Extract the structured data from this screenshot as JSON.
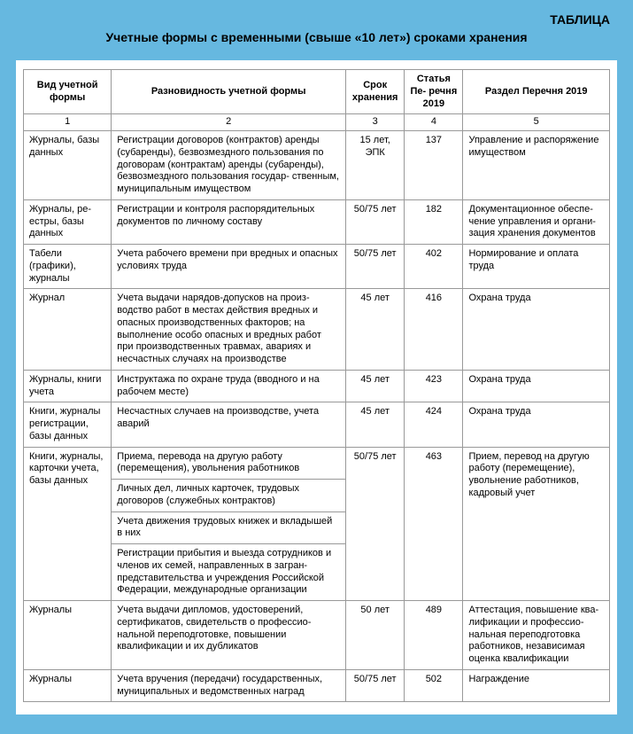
{
  "label": "ТАБЛИЦА",
  "title": "Учетные формы с временными (свыше «10 лет») сроками хранения",
  "table": {
    "columns": [
      "Вид учетной формы",
      "Разновидность учетной формы",
      "Срок хранения",
      "Статья Пе- речня 2019",
      "Раздел Перечня 2019"
    ],
    "col_numbers": [
      "1",
      "2",
      "3",
      "4",
      "5"
    ],
    "col_widths_pct": [
      15,
      40,
      10,
      10,
      25
    ],
    "border_color": "#999999",
    "background_color": "#ffffff",
    "outer_background": "#66b8e0",
    "font_family": "Arial",
    "header_fontsize": 11,
    "cell_fontsize": 11
  },
  "rows": [
    {
      "c1": "Журналы, базы данных",
      "c2": [
        "Регистрации договоров (контрактов) аренды (субаренды), безвозмездного пользования по договорам (контрактам) аренды (субаренды), безвозмездного пользования государ- ственным, муниципальным имуществом"
      ],
      "c3": "15 лет, ЭПК",
      "c4": "137",
      "c5": "Управление и распоряжение имуществом"
    },
    {
      "c1": "Журналы, ре- естры, базы данных",
      "c2": [
        "Регистрации и контроля распорядительных документов по личному составу"
      ],
      "c3": "50/75 лет",
      "c4": "182",
      "c5": "Документационное обеспе- чение управления и органи- зация хранения документов"
    },
    {
      "c1": "Табели (графики), журналы",
      "c2": [
        "Учета рабочего времени при вредных и опасных условиях труда"
      ],
      "c3": "50/75 лет",
      "c4": "402",
      "c5": "Нормирование и оплата труда"
    },
    {
      "c1": "Журнал",
      "c2": [
        "Учета выдачи нарядов-допусков на произ- водство работ в местах действия вредных и опасных производственных факторов; на выполнение особо опасных и вредных работ при производственных травмах, авариях и несчастных случаях на производстве"
      ],
      "c3": "45 лет",
      "c4": "416",
      "c5": "Охрана труда"
    },
    {
      "c1": "Журналы, книги учета",
      "c2": [
        "Инструктажа по охране труда (вводного и на рабочем месте)"
      ],
      "c3": "45 лет",
      "c4": "423",
      "c5": "Охрана труда"
    },
    {
      "c1": "Книги, журналы регистрации, базы данных",
      "c2": [
        "Несчастных случаев на производстве, учета аварий"
      ],
      "c3": "45 лет",
      "c4": "424",
      "c5": "Охрана труда"
    },
    {
      "c1": "Книги, журналы, карточки учета, базы данных",
      "c2": [
        "Приема, перевода на другую работу (перемещения), увольнения работников",
        "Личных дел, личных карточек, трудовых договоров (служебных контрактов)",
        "Учета движения трудовых книжек и вкладышей в них",
        "Регистрации прибытия и выезда сотрудников и членов их семей, направленных в загран- представительства и учреждения Российской Федерации, международные организации"
      ],
      "c3": "50/75 лет",
      "c4": "463",
      "c5": "Прием, перевод на другую работу (перемещение), увольнение работников, кадровый учет"
    },
    {
      "c1": "Журналы",
      "c2": [
        "Учета выдачи дипломов, удостоверений, сертификатов, свидетельств о профессио- нальной переподготовке, повышении квалификации и их дубликатов"
      ],
      "c3": "50 лет",
      "c4": "489",
      "c5": "Аттестация, повышение ква- лификации и профессио- нальная переподготовка работников, независимая оценка квалификации"
    },
    {
      "c1": "Журналы",
      "c2": [
        "Учета вручения (передачи) государственных, муниципальных и ведомственных наград"
      ],
      "c3": "50/75 лет",
      "c4": "502",
      "c5": "Награждение"
    }
  ]
}
